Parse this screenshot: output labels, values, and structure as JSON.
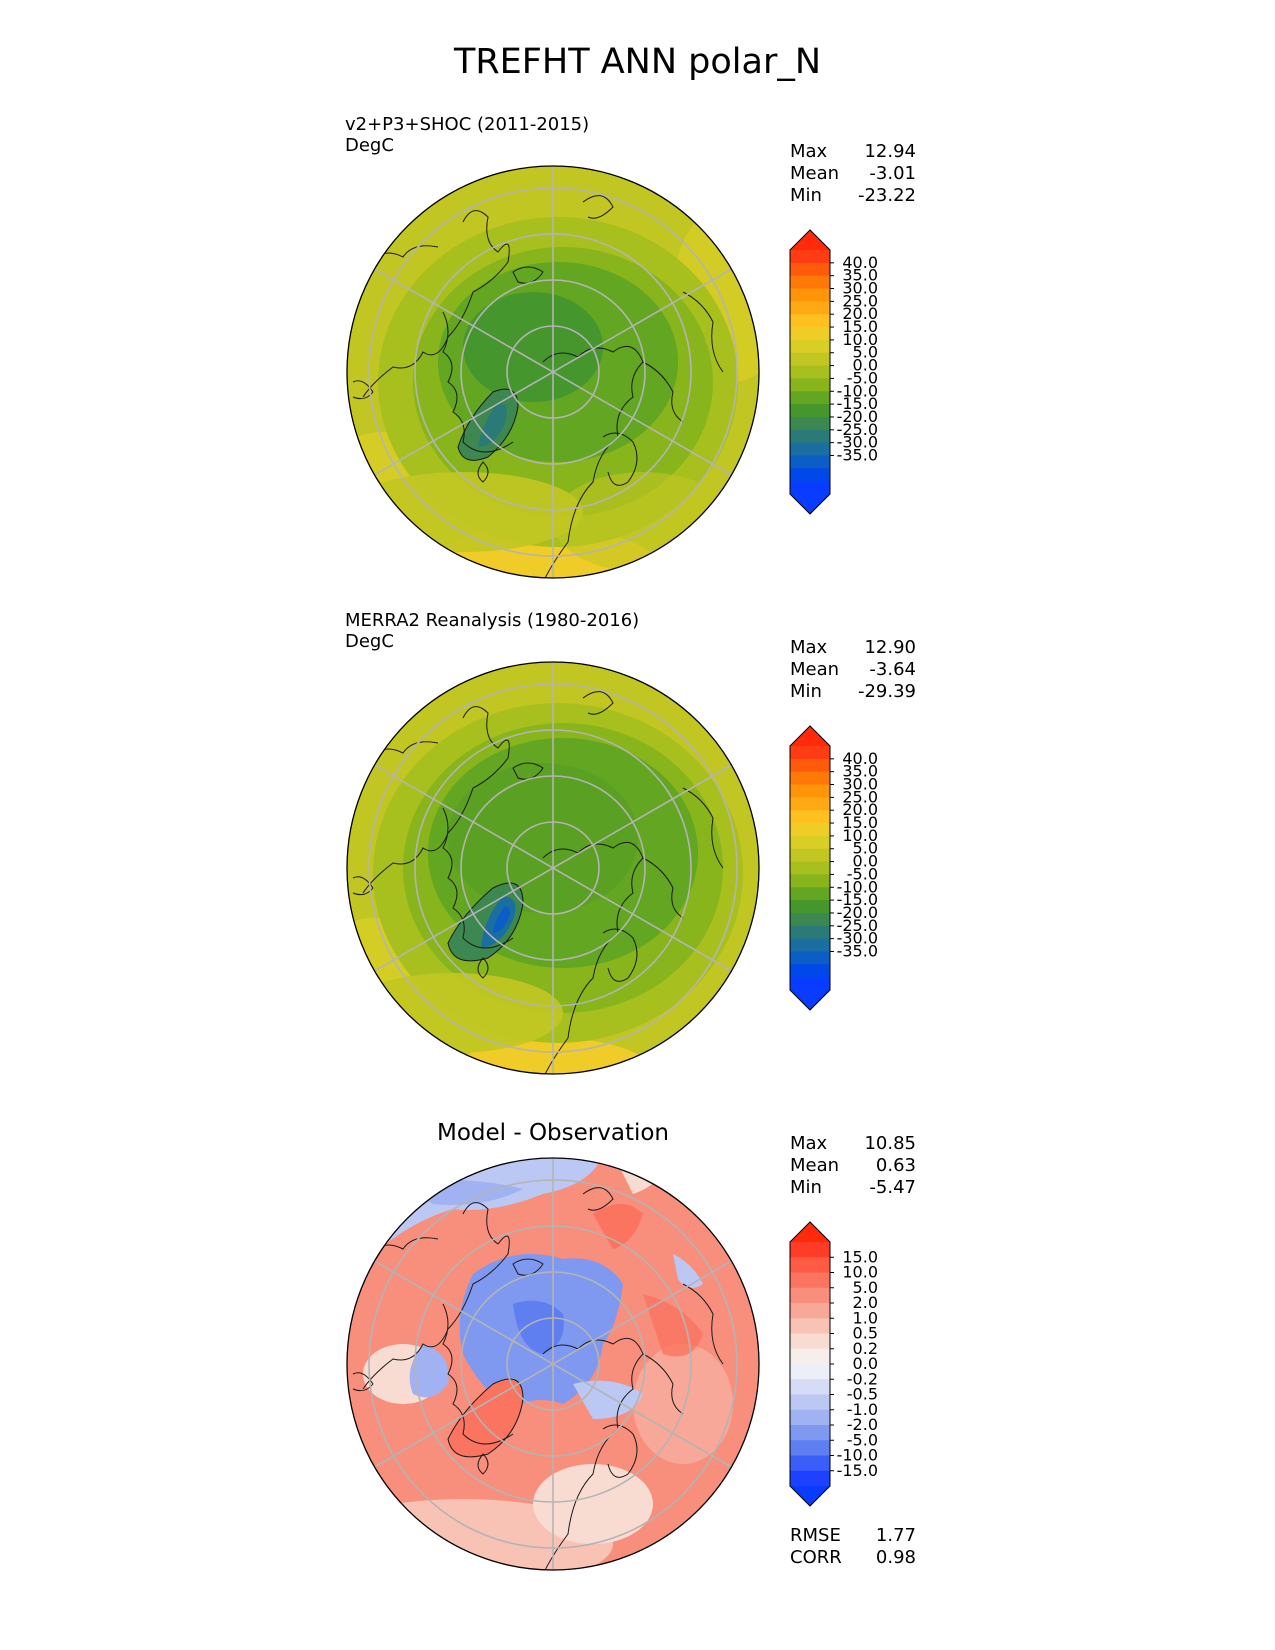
{
  "title": "TREFHT ANN polar_N",
  "panels": [
    {
      "id": "test",
      "title_line1": "v2+P3+SHOC (2011-2015)",
      "title_line2": "DegC",
      "stats": [
        {
          "label": "Max",
          "value": "12.94"
        },
        {
          "label": "Mean",
          "value": "-3.01"
        },
        {
          "label": "Min",
          "value": "-23.22"
        }
      ]
    },
    {
      "id": "ref",
      "title_line1": "MERRA2 Reanalysis (1980-2016)",
      "title_line2": "DegC",
      "stats": [
        {
          "label": "Max",
          "value": "12.90"
        },
        {
          "label": "Mean",
          "value": "-3.64"
        },
        {
          "label": "Min",
          "value": "-29.39"
        }
      ]
    },
    {
      "id": "diff",
      "title_center": "Model - Observation",
      "stats": [
        {
          "label": "Max",
          "value": "10.85"
        },
        {
          "label": "Mean",
          "value": "0.63"
        },
        {
          "label": "Min",
          "value": "-5.47"
        }
      ],
      "bottom_stats": [
        {
          "label": "RMSE",
          "value": "1.77"
        },
        {
          "label": "CORR",
          "value": "0.98"
        }
      ]
    }
  ],
  "colorbars": {
    "temperature": {
      "ticks": [
        "40.0",
        "35.0",
        "30.0",
        "25.0",
        "20.0",
        "15.0",
        "10.0",
        "5.0",
        "0.0",
        "-5.0",
        "-10.0",
        "-15.0",
        "-20.0",
        "-25.0",
        "-30.0",
        "-35.0"
      ],
      "colors_top_to_bottom": [
        "#ff3c14",
        "#ff5a0c",
        "#ff7808",
        "#ff9408",
        "#ffaa14",
        "#ffc020",
        "#f0cc28",
        "#d8ce26",
        "#c2c622",
        "#a8c01e",
        "#88b41c",
        "#62a622",
        "#46962e",
        "#3c8850",
        "#2a7a78",
        "#1a6ea0",
        "#0a5ec6",
        "#0048e8",
        "#0a3cff"
      ],
      "top_extend_color": "#ff2a0a",
      "bottom_extend_color": "#0a3cff"
    },
    "difference": {
      "ticks": [
        "15.0",
        "10.0",
        "5.0",
        "2.0",
        "1.0",
        "0.5",
        "0.2",
        "0.0",
        "-0.2",
        "-0.5",
        "-1.0",
        "-2.0",
        "-5.0",
        "-10.0",
        "-15.0"
      ],
      "colors_top_to_bottom": [
        "#ff3c28",
        "#ff5a44",
        "#fa7460",
        "#f88e7c",
        "#f8a898",
        "#f8c2b4",
        "#f8dcd2",
        "#f6eeea",
        "#eceef8",
        "#d6dcf6",
        "#bcc8f4",
        "#a0b2f2",
        "#8099f0",
        "#5f7ef0",
        "#3c5ef8",
        "#1e40ff"
      ],
      "top_extend_color": "#ff2a0a",
      "bottom_extend_color": "#0a3cff"
    }
  }
}
